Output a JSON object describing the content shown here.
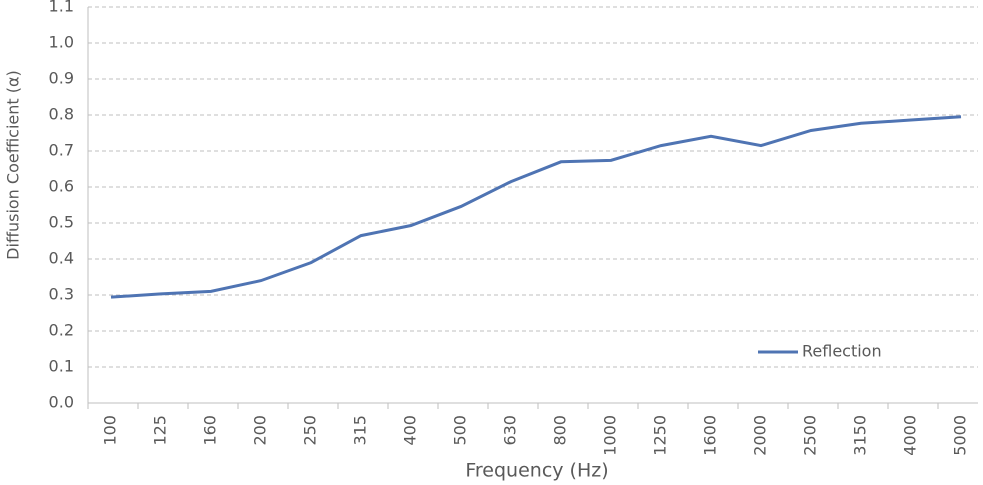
{
  "chart_data": {
    "type": "line",
    "y_label": "Diffusion Coefficient (α)",
    "x_label": "Frequency (Hz)",
    "categories": [
      "100",
      "125",
      "160",
      "200",
      "250",
      "315",
      "400",
      "500",
      "630",
      "800",
      "1000",
      "1250",
      "1600",
      "2000",
      "2500",
      "3150",
      "4000",
      "5000"
    ],
    "series": [
      {
        "name": "Reflection",
        "color": "#4f74b3",
        "values": [
          0.294,
          0.303,
          0.31,
          0.34,
          0.39,
          0.465,
          0.493,
          0.546,
          0.615,
          0.67,
          0.674,
          0.715,
          0.741,
          0.715,
          0.757,
          0.777,
          0.786,
          0.795
        ]
      }
    ],
    "ylim": [
      0,
      1.1
    ],
    "yticks": [
      {
        "value": 0,
        "label": "0.0"
      },
      0.1,
      0.2,
      0.3,
      0.4,
      0.5,
      0.6,
      0.7,
      0.8,
      0.9,
      {
        "value": 1,
        "label": "1.0"
      },
      1.1
    ],
    "grid": true,
    "legend": "lower-right"
  }
}
